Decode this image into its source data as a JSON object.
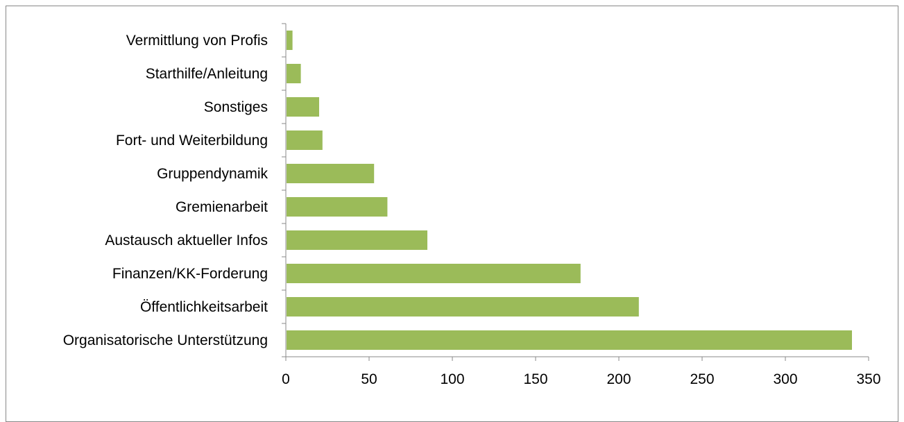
{
  "chart_data": {
    "type": "bar",
    "orientation": "horizontal",
    "categories": [
      "Vermittlung von Profis",
      "Starthilfe/Anleitung",
      "Sonstiges",
      "Fort- und Weiterbildung",
      "Gruppendynamik",
      "Gremienarbeit",
      "Austausch aktueller Infos",
      "Finanzen/KK-Forderung",
      "Öffentlichkeitsarbeit",
      "Organisatorische Unterstützung"
    ],
    "values": [
      4,
      9,
      20,
      22,
      53,
      61,
      85,
      177,
      212,
      340
    ],
    "x_ticks": [
      "0",
      "50",
      "100",
      "150",
      "200",
      "250",
      "300",
      "350"
    ],
    "xlim": [
      0,
      350
    ],
    "title": "",
    "xlabel": "",
    "ylabel": "",
    "grid": false,
    "legend": "none",
    "bar_color": "#9bbb59"
  }
}
